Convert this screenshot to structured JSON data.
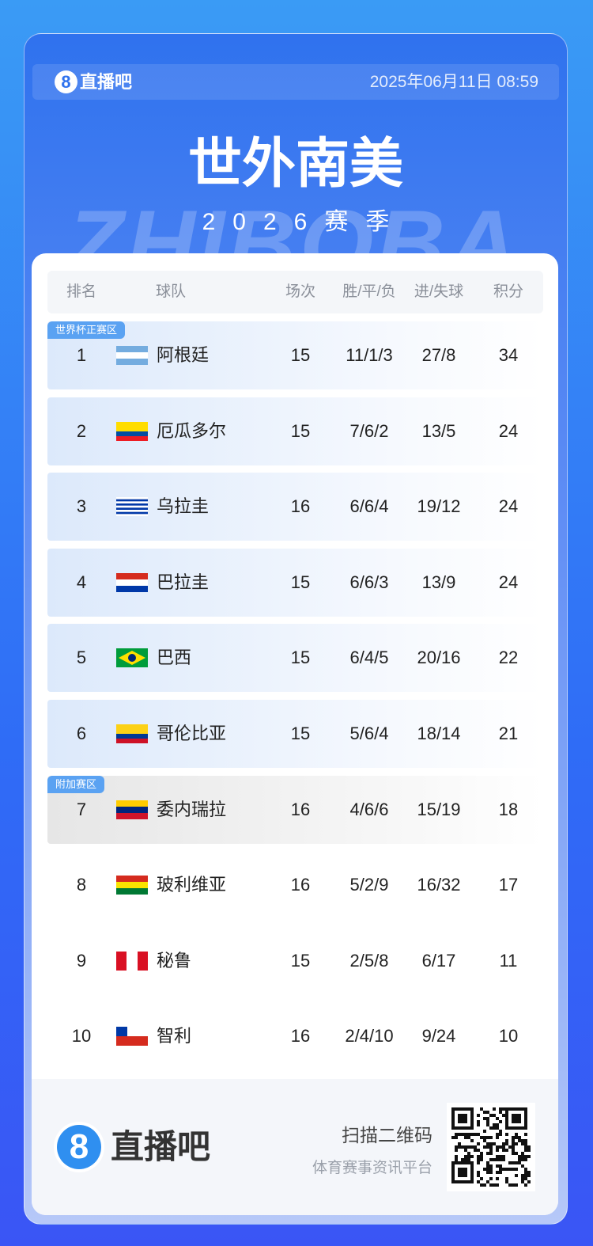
{
  "header": {
    "logo_mark": "8",
    "logo_text": "直播吧",
    "datetime": "2025年06月11日 08:59"
  },
  "title": "世外南美",
  "subtitle": "2026赛季",
  "watermark": "ZHIBOBA",
  "table": {
    "columns": [
      "排名",
      "球队",
      "场次",
      "胜/平/负",
      "进/失球",
      "积分"
    ],
    "rows": [
      {
        "zone": "世界杯正赛区",
        "rank": 1,
        "team": "阿根廷",
        "played": 15,
        "wdl": "11/1/3",
        "goals": "27/8",
        "points": 34
      },
      {
        "rank": 2,
        "team": "厄瓜多尔",
        "played": 15,
        "wdl": "7/6/2",
        "goals": "13/5",
        "points": 24
      },
      {
        "rank": 3,
        "team": "乌拉圭",
        "played": 16,
        "wdl": "6/6/4",
        "goals": "19/12",
        "points": 24
      },
      {
        "rank": 4,
        "team": "巴拉圭",
        "played": 15,
        "wdl": "6/6/3",
        "goals": "13/9",
        "points": 24
      },
      {
        "rank": 5,
        "team": "巴西",
        "played": 15,
        "wdl": "6/4/5",
        "goals": "20/16",
        "points": 22
      },
      {
        "rank": 6,
        "team": "哥伦比亚",
        "played": 15,
        "wdl": "5/6/4",
        "goals": "18/14",
        "points": 21
      },
      {
        "zone": "附加赛区",
        "rank": 7,
        "team": "委内瑞拉",
        "played": 16,
        "wdl": "4/6/6",
        "goals": "15/19",
        "points": 18
      },
      {
        "rank": 8,
        "team": "玻利维亚",
        "played": 16,
        "wdl": "5/2/9",
        "goals": "16/32",
        "points": 17
      },
      {
        "rank": 9,
        "team": "秘鲁",
        "played": 15,
        "wdl": "2/5/8",
        "goals": "6/17",
        "points": 11
      },
      {
        "rank": 10,
        "team": "智利",
        "played": 16,
        "wdl": "2/4/10",
        "goals": "9/24",
        "points": 10
      }
    ]
  },
  "footer": {
    "logo_mark": "8",
    "logo_text": "直播吧",
    "scan": "扫描二维码",
    "tagline": "体育赛事资讯平台"
  }
}
